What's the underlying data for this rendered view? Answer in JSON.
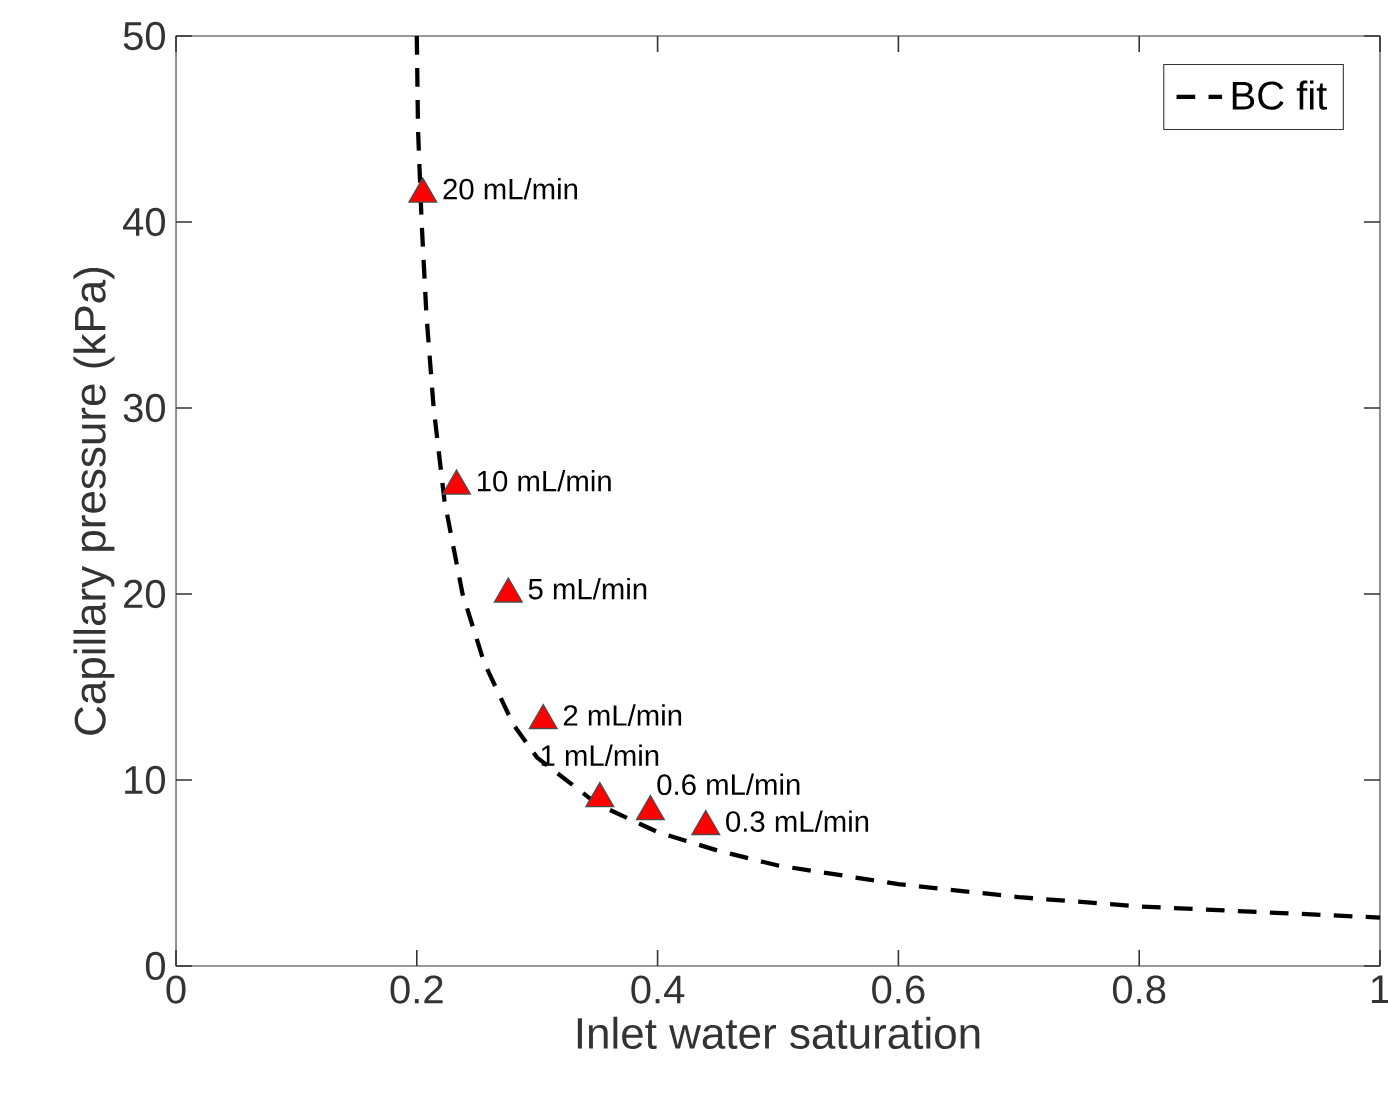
{
  "chart_data": {
    "type": "scatter",
    "xlabel": "Inlet water saturation",
    "ylabel": "Capillary pressure (kPa)",
    "xlim": [
      0,
      1
    ],
    "ylim": [
      0,
      50
    ],
    "xticks": [
      0,
      0.2,
      0.4,
      0.6,
      0.8,
      1
    ],
    "yticks": [
      0,
      10,
      20,
      30,
      40,
      50
    ],
    "legend": "top right",
    "series": [
      {
        "type": "line",
        "name": "BC fit",
        "color": "#000000",
        "line_style": "dashed",
        "marker": "none",
        "x": [
          0.2,
          0.201,
          0.204,
          0.208,
          0.214,
          0.223,
          0.238,
          0.256,
          0.28,
          0.3,
          0.35,
          0.4,
          0.45,
          0.5,
          0.6,
          0.7,
          0.8,
          0.9,
          1.0
        ],
        "values": [
          50,
          45,
          40,
          35,
          30,
          25,
          20,
          16.3,
          13,
          11.2,
          8.7,
          7.2,
          6.2,
          5.4,
          4.4,
          3.7,
          3.2,
          2.9,
          2.6
        ]
      },
      {
        "color": "#ff0000",
        "marker": "triangle",
        "x": [
          0.205,
          0.233,
          0.276,
          0.305,
          0.352,
          0.394,
          0.44
        ],
        "values": [
          41.5,
          25.8,
          20.0,
          13.2,
          9.0,
          8.3,
          7.5
        ]
      }
    ],
    "annotations": [
      {
        "text": "20 mL/min",
        "x": 0.205,
        "y": 41.5
      },
      {
        "text": "10 mL/min",
        "x": 0.233,
        "y": 25.8
      },
      {
        "text": "5 mL/min",
        "x": 0.276,
        "y": 20.0
      },
      {
        "text": "2 mL/min",
        "x": 0.305,
        "y": 13.2
      },
      {
        "text": "1 mL/min",
        "x": 0.352,
        "y": 9.0
      },
      {
        "text": "0.6 mL/min",
        "x": 0.394,
        "y": 8.3
      },
      {
        "text": "0.3 mL/min",
        "x": 0.44,
        "y": 7.5
      }
    ]
  }
}
